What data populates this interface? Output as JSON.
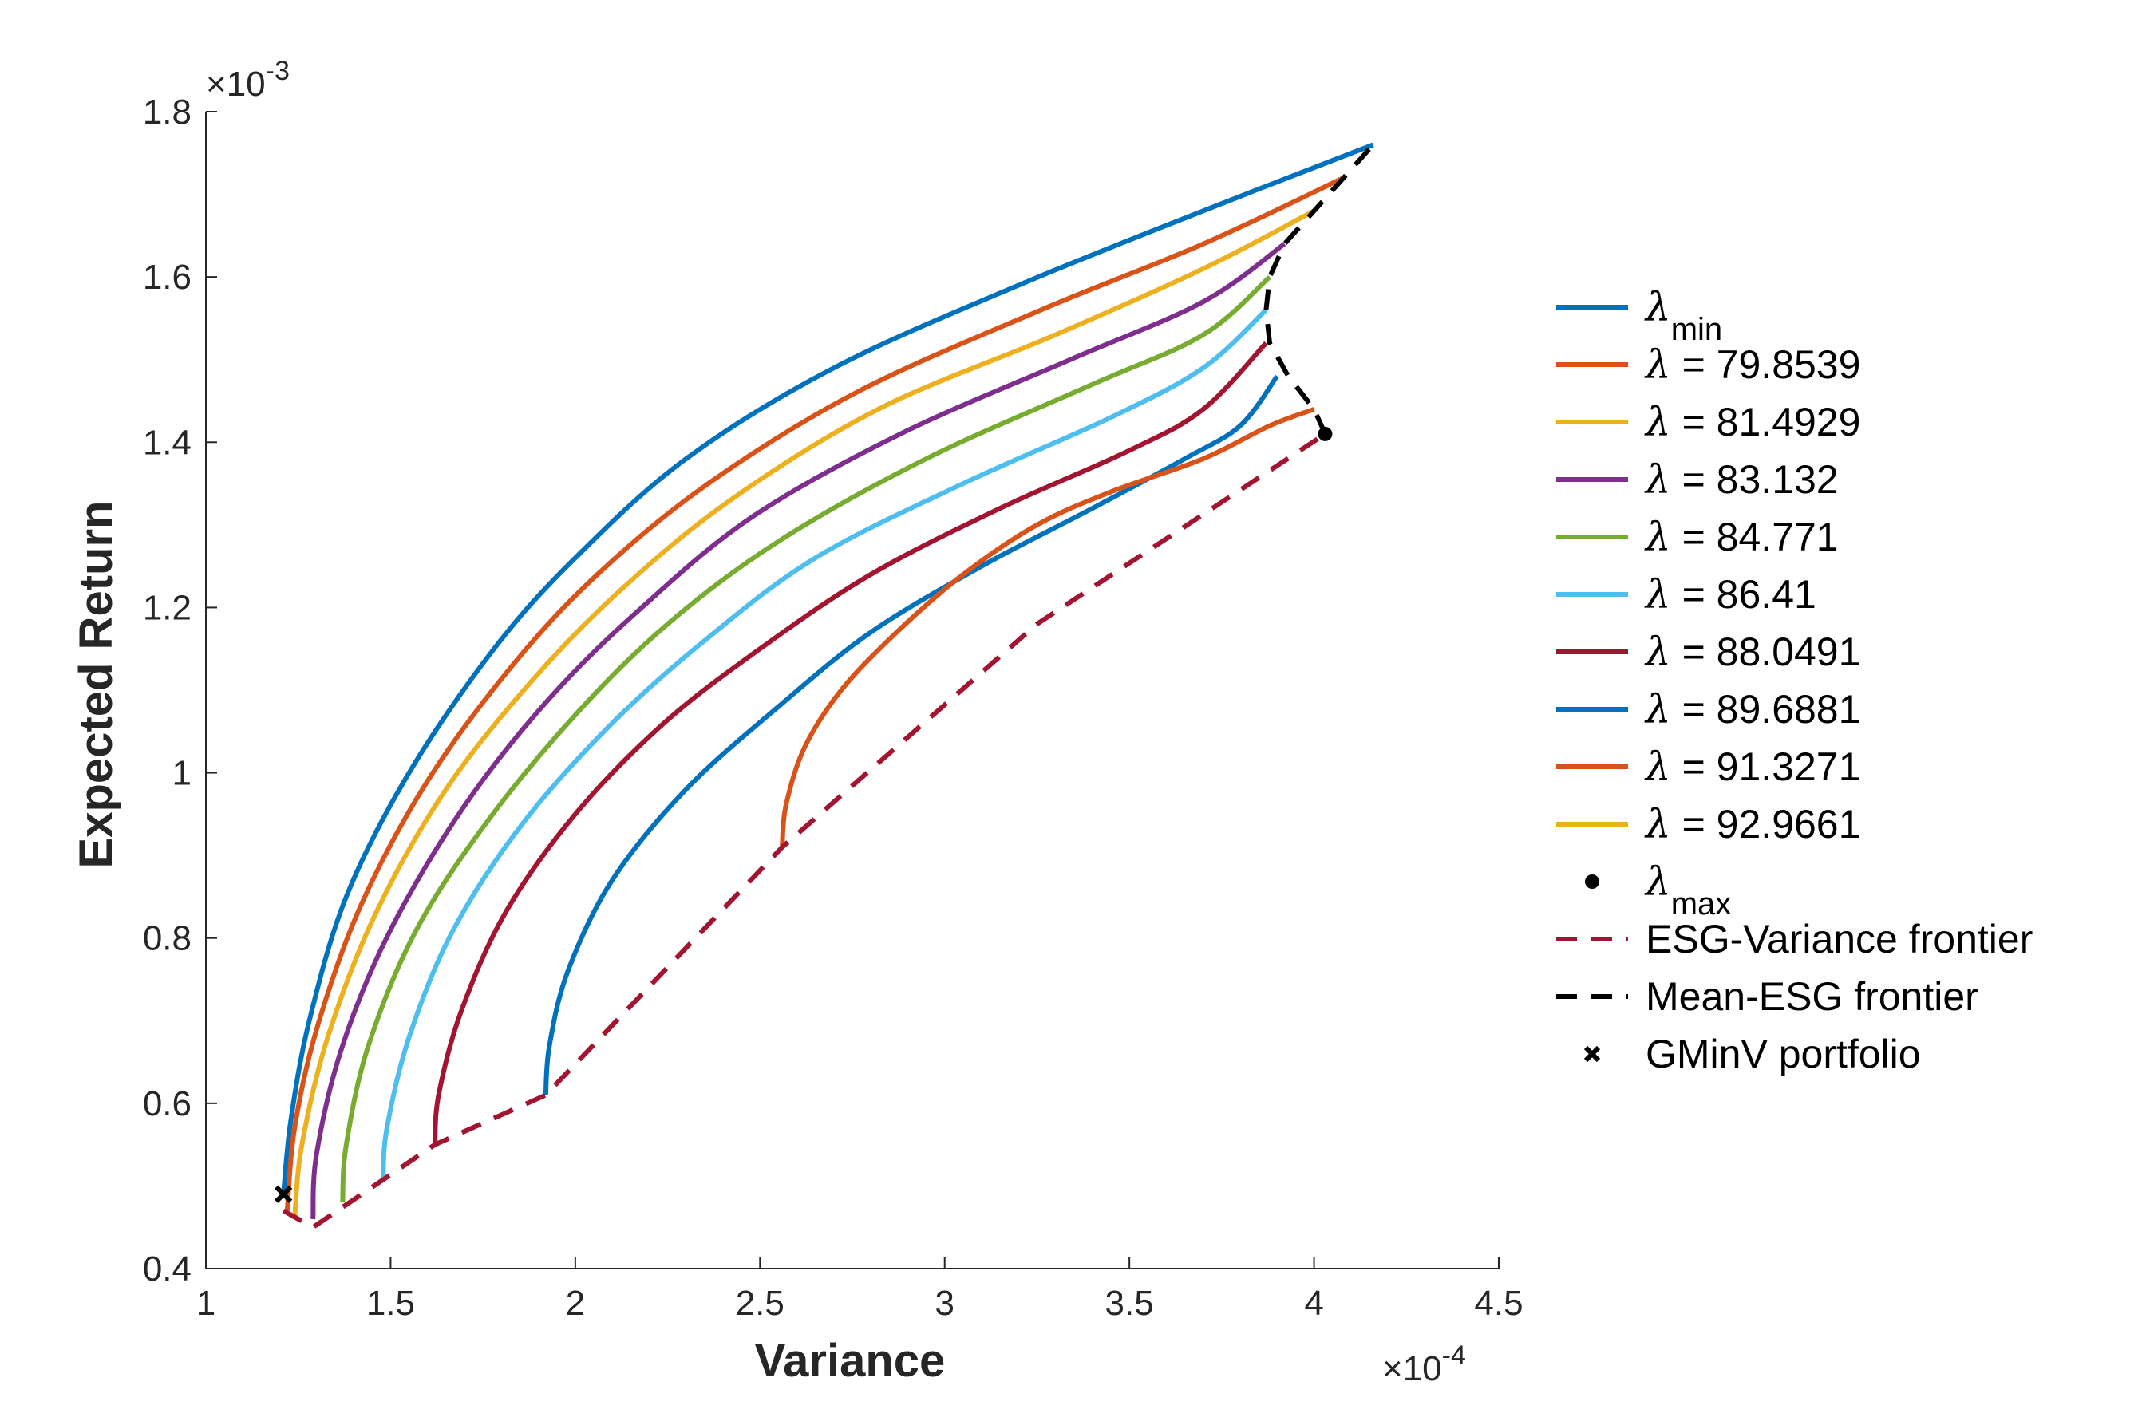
{
  "chart_data": {
    "type": "line",
    "title": "",
    "xlabel": "Variance",
    "ylabel": "Expected Return",
    "x_exponent": "-4",
    "y_exponent": "-3",
    "xlim": [
      1,
      4.5
    ],
    "ylim": [
      0.4,
      1.8
    ],
    "xticks": [
      1,
      1.5,
      2,
      2.5,
      3,
      3.5,
      4,
      4.5
    ],
    "yticks": [
      0.4,
      0.6,
      0.8,
      1,
      1.2,
      1.4,
      1.6,
      1.8
    ],
    "xtick_labels": [
      "1",
      "1.5",
      "2",
      "2.5",
      "3",
      "3.5",
      "4",
      "4.5"
    ],
    "ytick_labels": [
      "0.4",
      "0.6",
      "0.8",
      "1",
      "1.2",
      "1.4",
      "1.6",
      "1.8"
    ],
    "legend_position": "right",
    "series": [
      {
        "name": "λmin",
        "legend_lambda": "λ",
        "legend_main": "",
        "legend_sub": "min",
        "color": "#0072BD",
        "style": "solid",
        "points": [
          [
            1.21,
            0.49
          ],
          [
            1.23,
            0.58
          ],
          [
            1.28,
            0.7
          ],
          [
            1.38,
            0.85
          ],
          [
            1.55,
            1.0
          ],
          [
            1.78,
            1.15
          ],
          [
            2.0,
            1.26
          ],
          [
            2.3,
            1.38
          ],
          [
            2.7,
            1.49
          ],
          [
            3.2,
            1.59
          ],
          [
            3.7,
            1.68
          ],
          [
            4.16,
            1.76
          ]
        ]
      },
      {
        "name": "λ = 79.8539",
        "legend_lambda": "λ",
        "legend_main": " = 79.8539",
        "legend_sub": "",
        "color": "#D95319",
        "style": "solid",
        "points": [
          [
            1.22,
            0.47
          ],
          [
            1.24,
            0.57
          ],
          [
            1.3,
            0.69
          ],
          [
            1.42,
            0.84
          ],
          [
            1.6,
            0.99
          ],
          [
            1.83,
            1.13
          ],
          [
            2.06,
            1.24
          ],
          [
            2.36,
            1.35
          ],
          [
            2.76,
            1.46
          ],
          [
            3.26,
            1.56
          ],
          [
            3.7,
            1.64
          ],
          [
            4.08,
            1.72
          ]
        ]
      },
      {
        "name": "λ = 81.4929",
        "legend_lambda": "λ",
        "legend_main": " = 81.4929",
        "legend_sub": "",
        "color": "#EDB120",
        "style": "solid",
        "points": [
          [
            1.24,
            0.46
          ],
          [
            1.26,
            0.55
          ],
          [
            1.33,
            0.68
          ],
          [
            1.46,
            0.83
          ],
          [
            1.65,
            0.98
          ],
          [
            1.88,
            1.11
          ],
          [
            2.12,
            1.22
          ],
          [
            2.42,
            1.33
          ],
          [
            2.82,
            1.44
          ],
          [
            3.3,
            1.53
          ],
          [
            3.7,
            1.61
          ],
          [
            4.0,
            1.68
          ]
        ]
      },
      {
        "name": "λ = 83.132",
        "legend_lambda": "λ",
        "legend_main": " = 83.132",
        "legend_sub": "",
        "color": "#7E2F8E",
        "style": "solid",
        "points": [
          [
            1.29,
            0.46
          ],
          [
            1.3,
            0.54
          ],
          [
            1.37,
            0.67
          ],
          [
            1.5,
            0.81
          ],
          [
            1.7,
            0.96
          ],
          [
            1.93,
            1.09
          ],
          [
            2.18,
            1.2
          ],
          [
            2.48,
            1.31
          ],
          [
            2.88,
            1.41
          ],
          [
            3.34,
            1.5
          ],
          [
            3.7,
            1.57
          ],
          [
            3.92,
            1.64
          ]
        ]
      },
      {
        "name": "λ = 84.771",
        "legend_lambda": "λ",
        "legend_main": " = 84.771",
        "legend_sub": "",
        "color": "#77AC30",
        "style": "solid",
        "points": [
          [
            1.37,
            0.48
          ],
          [
            1.38,
            0.55
          ],
          [
            1.44,
            0.67
          ],
          [
            1.57,
            0.81
          ],
          [
            1.76,
            0.94
          ],
          [
            2.0,
            1.07
          ],
          [
            2.25,
            1.18
          ],
          [
            2.55,
            1.28
          ],
          [
            2.95,
            1.38
          ],
          [
            3.4,
            1.47
          ],
          [
            3.7,
            1.53
          ],
          [
            3.88,
            1.6
          ]
        ]
      },
      {
        "name": "λ = 86.41",
        "legend_lambda": "λ",
        "legend_main": " = 86.41",
        "legend_sub": "",
        "color": "#4DBEEE",
        "style": "solid",
        "points": [
          [
            1.48,
            0.51
          ],
          [
            1.49,
            0.57
          ],
          [
            1.55,
            0.68
          ],
          [
            1.67,
            0.81
          ],
          [
            1.86,
            0.94
          ],
          [
            2.1,
            1.06
          ],
          [
            2.35,
            1.16
          ],
          [
            2.65,
            1.26
          ],
          [
            3.05,
            1.35
          ],
          [
            3.45,
            1.43
          ],
          [
            3.7,
            1.49
          ],
          [
            3.87,
            1.56
          ]
        ]
      },
      {
        "name": "λ = 88.0491",
        "legend_lambda": "λ",
        "legend_main": " = 88.0491",
        "legend_sub": "",
        "color": "#A2142F",
        "style": "solid",
        "points": [
          [
            1.62,
            0.55
          ],
          [
            1.63,
            0.61
          ],
          [
            1.69,
            0.71
          ],
          [
            1.81,
            0.83
          ],
          [
            2.0,
            0.95
          ],
          [
            2.24,
            1.06
          ],
          [
            2.5,
            1.15
          ],
          [
            2.8,
            1.24
          ],
          [
            3.15,
            1.32
          ],
          [
            3.5,
            1.39
          ],
          [
            3.7,
            1.44
          ],
          [
            3.87,
            1.52
          ]
        ]
      },
      {
        "name": "λ = 89.6881",
        "legend_lambda": "λ",
        "legend_main": " = 89.6881",
        "legend_sub": "",
        "color": "#0072BD",
        "style": "solid",
        "points": [
          [
            1.92,
            0.61
          ],
          [
            1.93,
            0.67
          ],
          [
            1.98,
            0.76
          ],
          [
            2.1,
            0.87
          ],
          [
            2.3,
            0.98
          ],
          [
            2.55,
            1.08
          ],
          [
            2.8,
            1.17
          ],
          [
            3.1,
            1.25
          ],
          [
            3.4,
            1.32
          ],
          [
            3.65,
            1.38
          ],
          [
            3.8,
            1.42
          ],
          [
            3.9,
            1.48
          ]
        ]
      },
      {
        "name": "λ = 91.3271",
        "legend_lambda": "λ",
        "legend_main": " = 91.3271",
        "legend_sub": "",
        "color": "#D95319",
        "style": "solid",
        "points": [
          [
            2.56,
            0.91
          ],
          [
            2.57,
            0.96
          ],
          [
            2.62,
            1.03
          ],
          [
            2.72,
            1.1
          ],
          [
            2.87,
            1.17
          ],
          [
            3.05,
            1.24
          ],
          [
            3.25,
            1.3
          ],
          [
            3.45,
            1.34
          ],
          [
            3.7,
            1.38
          ],
          [
            3.88,
            1.42
          ],
          [
            4.0,
            1.44
          ]
        ]
      },
      {
        "name": "λ = 92.9661",
        "legend_lambda": "λ",
        "legend_main": " = 92.9661",
        "legend_sub": "",
        "color": "#EDB120",
        "style": "solid",
        "points": []
      },
      {
        "name": "λmax",
        "legend_lambda": "λ",
        "legend_main": "",
        "legend_sub": "max",
        "color": "#000000",
        "style": "dot",
        "points": [
          [
            4.03,
            1.41
          ]
        ]
      },
      {
        "name": "ESG-Variance frontier",
        "legend_lambda": "",
        "legend_main": "ESG-Variance frontier",
        "legend_sub": "",
        "color": "#A2142F",
        "style": "dashed",
        "points": [
          [
            1.21,
            0.47
          ],
          [
            1.29,
            0.45
          ],
          [
            1.62,
            0.55
          ],
          [
            1.92,
            0.61
          ],
          [
            2.56,
            0.91
          ],
          [
            3.25,
            1.18
          ],
          [
            4.03,
            1.41
          ]
        ]
      },
      {
        "name": "Mean-ESG frontier",
        "legend_lambda": "",
        "legend_main": "Mean-ESG frontier",
        "legend_sub": "",
        "color": "#000000",
        "style": "dashed",
        "points": [
          [
            4.03,
            1.41
          ],
          [
            4.0,
            1.44
          ],
          [
            3.93,
            1.48
          ],
          [
            3.88,
            1.52
          ],
          [
            3.87,
            1.56
          ],
          [
            3.88,
            1.6
          ],
          [
            3.92,
            1.64
          ],
          [
            4.0,
            1.68
          ],
          [
            4.08,
            1.72
          ],
          [
            4.16,
            1.76
          ]
        ]
      },
      {
        "name": "GMinV portfolio",
        "legend_lambda": "",
        "legend_main": "GMinV portfolio",
        "legend_sub": "",
        "color": "#000000",
        "style": "cross",
        "points": [
          [
            1.21,
            0.49
          ]
        ]
      }
    ]
  }
}
